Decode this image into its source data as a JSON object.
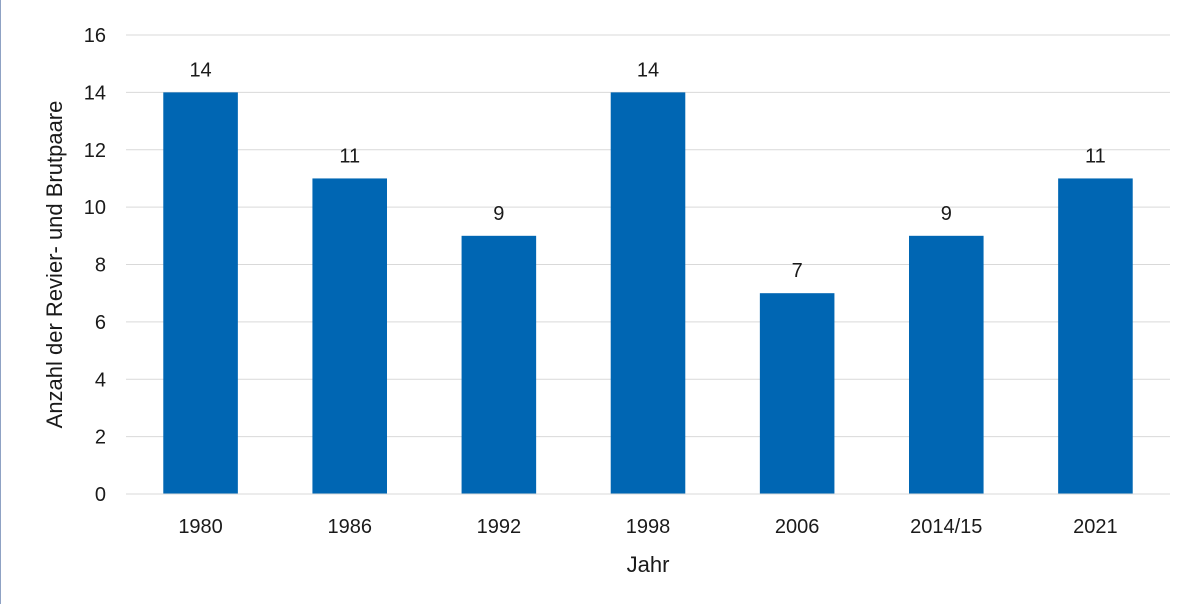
{
  "chart_data": {
    "type": "bar",
    "title": "",
    "xlabel": "Jahr",
    "ylabel": "Anzahl der Revier- und Brutpaare",
    "categories": [
      "1980",
      "1986",
      "1992",
      "1998",
      "2006",
      "2014/15",
      "2021"
    ],
    "values": [
      14,
      11,
      9,
      14,
      7,
      9,
      11
    ],
    "ylim": [
      0,
      16
    ],
    "yticks": [
      0,
      2,
      4,
      6,
      8,
      10,
      12,
      14,
      16
    ],
    "grid": true,
    "legend": "none",
    "data_labels": true,
    "bar_color": "#0066b3",
    "grid_color": "#d9d9d9"
  }
}
